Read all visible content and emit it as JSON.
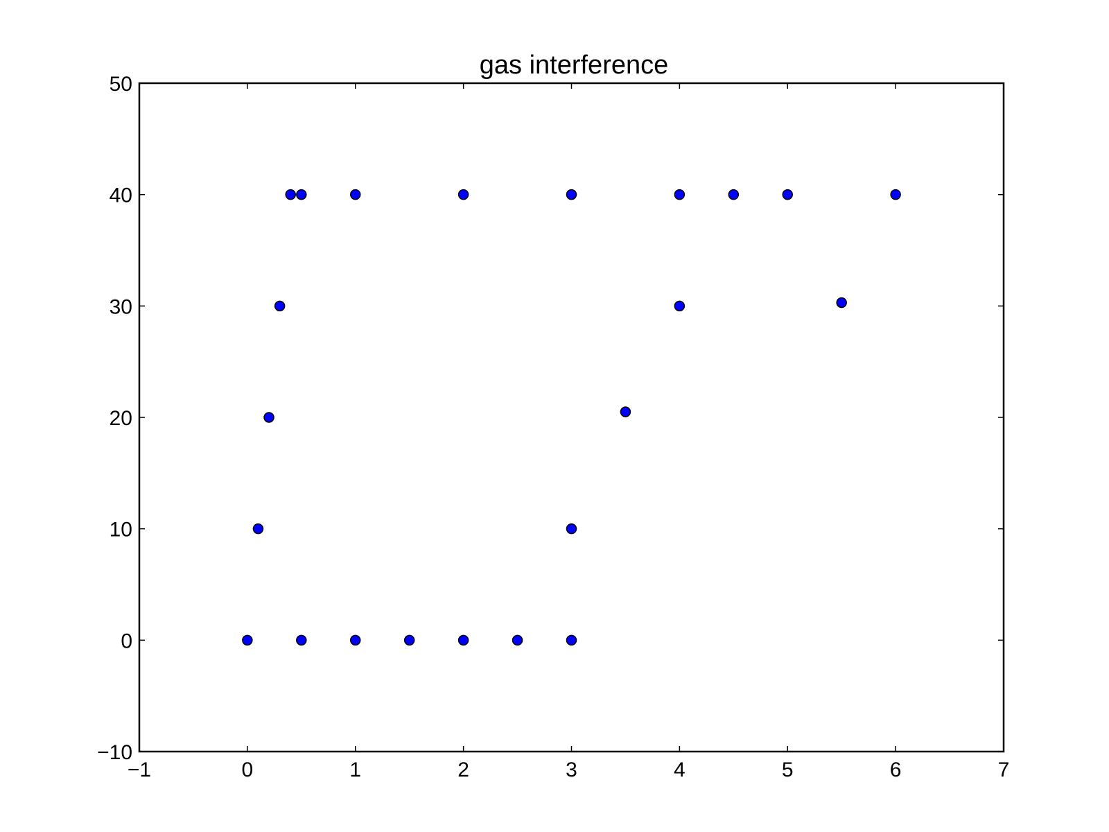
{
  "chart_data": {
    "type": "scatter",
    "title": "gas interference",
    "xlabel": "",
    "ylabel": "",
    "xlim": [
      -1,
      7
    ],
    "ylim": [
      -10,
      50
    ],
    "xticks": [
      -1,
      0,
      1,
      2,
      3,
      4,
      5,
      6,
      7
    ],
    "yticks": [
      -10,
      0,
      10,
      20,
      30,
      40,
      50
    ],
    "xtick_labels": [
      "−1",
      "0",
      "1",
      "2",
      "3",
      "4",
      "5",
      "6",
      "7"
    ],
    "ytick_labels": [
      "−10",
      "0",
      "10",
      "20",
      "30",
      "40",
      "50"
    ],
    "grid": false,
    "legend": "none",
    "marker_color": "#0000ff",
    "marker_edge_color": "#000000",
    "series": [
      {
        "points": [
          [
            0,
            0
          ],
          [
            0.5,
            0
          ],
          [
            1,
            0
          ],
          [
            1.5,
            0
          ],
          [
            2,
            0
          ],
          [
            2.5,
            0
          ],
          [
            3,
            0
          ],
          [
            0.1,
            10
          ],
          [
            0.2,
            20
          ],
          [
            0.3,
            30
          ],
          [
            0.4,
            40
          ],
          [
            0.5,
            40
          ],
          [
            1,
            40
          ],
          [
            2,
            40
          ],
          [
            3,
            40
          ],
          [
            3,
            10
          ],
          [
            3.5,
            20.5
          ],
          [
            4,
            30
          ],
          [
            4,
            40
          ],
          [
            4.5,
            40
          ],
          [
            5,
            40
          ],
          [
            5.5,
            30.3
          ],
          [
            6,
            40
          ]
        ]
      }
    ]
  }
}
